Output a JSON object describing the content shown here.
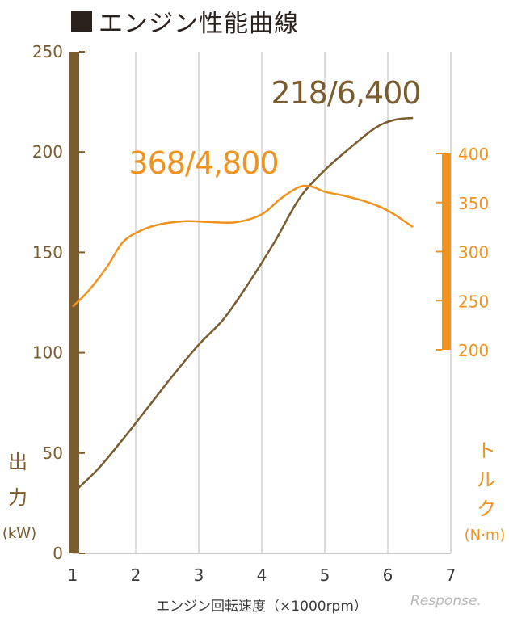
{
  "title": "エンジン性能曲線",
  "watermark": "Response.",
  "chart_data": {
    "type": "line",
    "title": "エンジン性能曲線",
    "xlabel": "エンジン回転速度（×1000rpm）",
    "x_ticks": [
      "1",
      "2",
      "3",
      "4",
      "5",
      "6",
      "7"
    ],
    "xlim": [
      1,
      7
    ],
    "grid": "vertical",
    "left_axis": {
      "label_chars": [
        "出",
        "力"
      ],
      "unit": "(kW)",
      "ticks": [
        "0",
        "50",
        "100",
        "150",
        "200",
        "250"
      ],
      "ylim": [
        0,
        250
      ]
    },
    "right_axis": {
      "label_chars": [
        "ト",
        "ル",
        "ク"
      ],
      "unit": "(N·m)",
      "ticks": [
        "200",
        "250",
        "300",
        "350",
        "400"
      ],
      "ylim": [
        200,
        400
      ]
    },
    "series": [
      {
        "axis": "left",
        "color": "#7a5c2e",
        "x": [
          1.0,
          1.4,
          1.8,
          2.2,
          2.6,
          3.0,
          3.4,
          3.8,
          4.2,
          4.6,
          5.0,
          5.4,
          5.8,
          6.1,
          6.4
        ],
        "y": [
          30,
          42,
          57,
          73,
          89,
          104,
          117,
          135,
          155,
          177,
          191,
          202,
          212,
          216,
          217
        ]
      },
      {
        "axis": "right",
        "color": "#f0921e",
        "x": [
          1.0,
          1.25,
          1.55,
          1.8,
          2.1,
          2.4,
          2.8,
          3.2,
          3.6,
          4.0,
          4.3,
          4.6,
          4.8,
          5.0,
          5.3,
          5.6,
          5.9,
          6.1,
          6.4
        ],
        "y": [
          244,
          260,
          285,
          310,
          322,
          328,
          331,
          330,
          330,
          338,
          354,
          366,
          366,
          361,
          357,
          352,
          345,
          338,
          325
        ]
      }
    ],
    "annotations": [
      {
        "text": "218/6,400",
        "color": "#7a5c2e"
      },
      {
        "text": "368/4,800",
        "color": "#f0921e"
      }
    ]
  }
}
